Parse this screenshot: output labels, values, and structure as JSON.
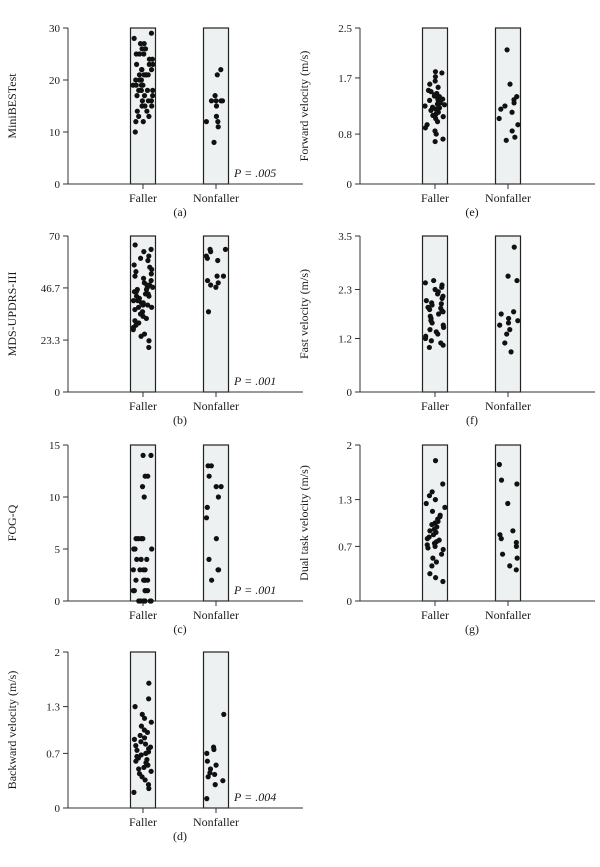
{
  "figure": {
    "panels_order": [
      "a",
      "b",
      "c",
      "d",
      "e",
      "f",
      "g"
    ]
  },
  "chart_data": [
    {
      "id": "a",
      "type": "scatter",
      "panel_label": "(a)",
      "ylabel": "MiniBESTest",
      "categories": [
        "Faller",
        "Nonfaller"
      ],
      "ylim": [
        0,
        30
      ],
      "yticks": [
        0,
        10,
        20,
        30
      ],
      "ytick_labels": [
        "0",
        "10",
        "20",
        "30"
      ],
      "p_value": "P = .005",
      "series": [
        {
          "category": "Faller",
          "values": [
            29,
            28,
            27,
            27,
            26,
            26,
            25,
            25,
            25,
            24,
            24,
            23,
            23,
            23,
            22,
            22,
            22,
            21,
            21,
            21,
            21,
            21,
            20,
            20,
            20,
            19,
            19,
            19,
            19,
            18,
            18,
            18,
            18,
            17,
            17,
            17,
            16,
            16,
            16,
            15,
            15,
            15,
            14,
            14,
            13,
            13,
            12,
            12,
            10
          ]
        },
        {
          "category": "Nonfaller",
          "values": [
            22,
            21,
            17,
            16,
            16,
            16,
            16,
            15,
            13,
            12,
            12,
            11,
            8
          ]
        }
      ]
    },
    {
      "id": "b",
      "type": "scatter",
      "panel_label": "(b)",
      "ylabel": "MDS-UPDRS-III",
      "categories": [
        "Faller",
        "Nonfaller"
      ],
      "ylim": [
        0,
        70
      ],
      "yticks": [
        0,
        23.3,
        46.7,
        70
      ],
      "ytick_labels": [
        "0",
        "23.3",
        "46.7",
        "70"
      ],
      "p_value": "P = .001",
      "series": [
        {
          "category": "Faller",
          "values": [
            66,
            64,
            63,
            61,
            60,
            59,
            57,
            56,
            55,
            54,
            53,
            52,
            51,
            50,
            49,
            48,
            48,
            47,
            47,
            46,
            46,
            45,
            45,
            44,
            44,
            43,
            43,
            42,
            42,
            41,
            41,
            40,
            40,
            39,
            39,
            38,
            38,
            37,
            36,
            35,
            34,
            33,
            32,
            31,
            30,
            29,
            28,
            26,
            25,
            23,
            20
          ]
        },
        {
          "category": "Nonfaller",
          "values": [
            64,
            64,
            63,
            61,
            60,
            59,
            52,
            52,
            50,
            49,
            48,
            47,
            36
          ]
        }
      ]
    },
    {
      "id": "c",
      "type": "scatter",
      "panel_label": "(c)",
      "ylabel": "FOG-Q",
      "categories": [
        "Faller",
        "Nonfaller"
      ],
      "ylim": [
        0,
        15
      ],
      "yticks": [
        0,
        5,
        10,
        15
      ],
      "ytick_labels": [
        "0",
        "5",
        "10",
        "15"
      ],
      "p_value": "P = .001",
      "series": [
        {
          "category": "Faller",
          "values": [
            14,
            14,
            12,
            12,
            11,
            10,
            6,
            6,
            6,
            6,
            5,
            5,
            5,
            5,
            4,
            4,
            4,
            3,
            3,
            3,
            3,
            2,
            2,
            2,
            2,
            2,
            1,
            1,
            1,
            1,
            1,
            0,
            0,
            0,
            0,
            0,
            0,
            0
          ]
        },
        {
          "category": "Nonfaller",
          "values": [
            13,
            13,
            12,
            11,
            11,
            10,
            9,
            8,
            6,
            4,
            3,
            3,
            2
          ]
        }
      ]
    },
    {
      "id": "d",
      "type": "scatter",
      "panel_label": "(d)",
      "ylabel": "Backward velocity (m/s)",
      "categories": [
        "Faller",
        "Nonfaller"
      ],
      "ylim": [
        0,
        2
      ],
      "yticks": [
        0,
        0.7,
        1.3,
        2
      ],
      "ytick_labels": [
        "0",
        "0.7",
        "1.3",
        "2"
      ],
      "p_value": "P = .004",
      "series": [
        {
          "category": "Faller",
          "values": [
            1.6,
            1.4,
            1.3,
            1.2,
            1.15,
            1.1,
            1.05,
            1.0,
            0.97,
            0.93,
            0.9,
            0.88,
            0.85,
            0.82,
            0.8,
            0.78,
            0.76,
            0.74,
            0.72,
            0.7,
            0.68,
            0.66,
            0.64,
            0.62,
            0.6,
            0.58,
            0.55,
            0.52,
            0.5,
            0.47,
            0.44,
            0.4,
            0.36,
            0.3,
            0.25,
            0.2
          ]
        },
        {
          "category": "Nonfaller",
          "values": [
            1.2,
            0.78,
            0.75,
            0.7,
            0.6,
            0.55,
            0.5,
            0.45,
            0.43,
            0.4,
            0.35,
            0.3,
            0.12
          ]
        }
      ]
    },
    {
      "id": "e",
      "type": "scatter",
      "panel_label": "(e)",
      "ylabel": "Forward velocity (m/s)",
      "categories": [
        "Faller",
        "Nonfaller"
      ],
      "ylim": [
        0,
        2.5
      ],
      "yticks": [
        0,
        0.8,
        1.7,
        2.5
      ],
      "ytick_labels": [
        "0",
        "0.8",
        "1.7",
        "2.5"
      ],
      "p_value": "",
      "series": [
        {
          "category": "Faller",
          "values": [
            1.8,
            1.78,
            1.72,
            1.65,
            1.6,
            1.55,
            1.5,
            1.48,
            1.45,
            1.43,
            1.41,
            1.4,
            1.38,
            1.36,
            1.35,
            1.34,
            1.32,
            1.3,
            1.28,
            1.27,
            1.25,
            1.23,
            1.22,
            1.2,
            1.18,
            1.15,
            1.12,
            1.1,
            1.08,
            1.05,
            1.0,
            0.95,
            0.9,
            0.85,
            0.8,
            0.72,
            0.68
          ]
        },
        {
          "category": "Nonfaller",
          "values": [
            2.15,
            1.6,
            1.4,
            1.35,
            1.3,
            1.25,
            1.2,
            1.15,
            1.05,
            0.95,
            0.85,
            0.75,
            0.7
          ]
        }
      ]
    },
    {
      "id": "f",
      "type": "scatter",
      "panel_label": "(f)",
      "ylabel": "Fast velocity (m/s)",
      "categories": [
        "Faller",
        "Nonfaller"
      ],
      "ylim": [
        0,
        3.5
      ],
      "yticks": [
        0,
        1.2,
        2.3,
        3.5
      ],
      "ytick_labels": [
        "0",
        "1.2",
        "2.3",
        "3.5"
      ],
      "p_value": "",
      "series": [
        {
          "category": "Faller",
          "values": [
            2.5,
            2.45,
            2.4,
            2.35,
            2.3,
            2.25,
            2.2,
            2.15,
            2.1,
            2.05,
            2.0,
            1.98,
            1.95,
            1.9,
            1.88,
            1.85,
            1.82,
            1.8,
            1.75,
            1.7,
            1.65,
            1.6,
            1.55,
            1.5,
            1.45,
            1.4,
            1.35,
            1.3,
            1.25,
            1.2,
            1.15,
            1.1,
            1.05,
            1.0
          ]
        },
        {
          "category": "Nonfaller",
          "values": [
            3.25,
            2.6,
            2.5,
            1.8,
            1.75,
            1.65,
            1.6,
            1.55,
            1.5,
            1.4,
            1.3,
            1.1,
            0.9
          ]
        }
      ]
    },
    {
      "id": "g",
      "type": "scatter",
      "panel_label": "(g)",
      "ylabel": "Dual task velocity (m/s)",
      "categories": [
        "Faller",
        "Nonfaller"
      ],
      "ylim": [
        0,
        2
      ],
      "yticks": [
        0,
        0.7,
        1.3,
        2
      ],
      "ytick_labels": [
        "0",
        "0.7",
        "1.3",
        "2"
      ],
      "p_value": "",
      "series": [
        {
          "category": "Faller",
          "values": [
            1.8,
            1.5,
            1.4,
            1.35,
            1.3,
            1.25,
            1.2,
            1.15,
            1.1,
            1.08,
            1.05,
            1.02,
            1.0,
            0.98,
            0.95,
            0.92,
            0.9,
            0.88,
            0.85,
            0.82,
            0.8,
            0.78,
            0.76,
            0.74,
            0.72,
            0.7,
            0.68,
            0.66,
            0.6,
            0.55,
            0.5,
            0.45,
            0.35,
            0.3,
            0.25
          ]
        },
        {
          "category": "Nonfaller",
          "values": [
            1.75,
            1.55,
            1.5,
            1.25,
            0.9,
            0.85,
            0.8,
            0.75,
            0.7,
            0.6,
            0.55,
            0.45,
            0.4
          ]
        }
      ]
    }
  ]
}
